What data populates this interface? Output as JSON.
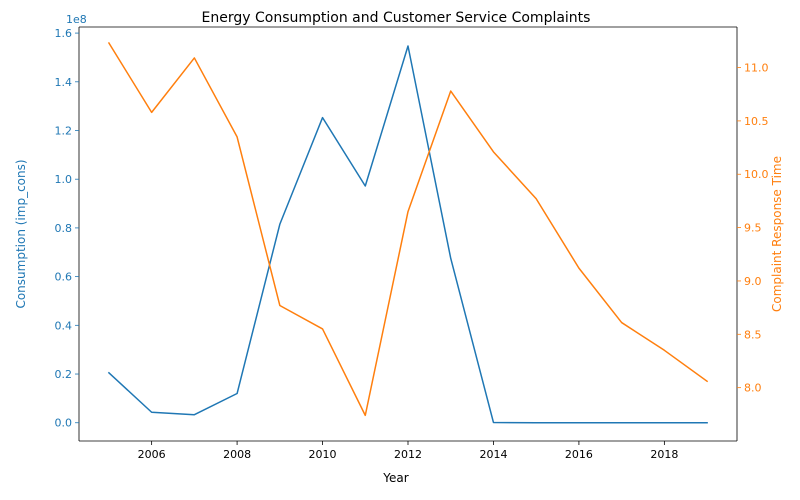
{
  "chart_data": {
    "type": "line",
    "title": "Energy Consumption and Customer Service Complaints",
    "xlabel": "Year",
    "xlim": [
      2004.3,
      2019.7
    ],
    "xticks": [
      2006,
      2008,
      2010,
      2012,
      2014,
      2016,
      2018
    ],
    "left_axis": {
      "label": "Consumption (imp_cons)",
      "color": "#1f77b4",
      "offset_text": "1e8",
      "ylim": [
        -0.075,
        1.625
      ],
      "ticks": [
        0.0,
        0.2,
        0.4,
        0.6,
        0.8,
        1.0,
        1.2,
        1.4,
        1.6
      ],
      "tick_labels": [
        "0.0",
        "0.2",
        "0.4",
        "0.6",
        "0.8",
        "1.0",
        "1.2",
        "1.4",
        "1.6"
      ]
    },
    "right_axis": {
      "label": "Complaint Response Time",
      "color": "#ff7f0e",
      "ylim": [
        7.5,
        11.38
      ],
      "ticks": [
        8.0,
        8.5,
        9.0,
        9.5,
        10.0,
        10.5,
        11.0
      ],
      "tick_labels": [
        "8.0",
        "8.5",
        "9.0",
        "9.5",
        "10.0",
        "10.5",
        "11.0"
      ]
    },
    "x": [
      2005,
      2006,
      2007,
      2008,
      2009,
      2010,
      2011,
      2012,
      2013,
      2014,
      2015,
      2016,
      2017,
      2018,
      2019
    ],
    "series": [
      {
        "axis": "left",
        "color": "#1f77b4",
        "units": "x1e8",
        "values": [
          0.205,
          0.043,
          0.033,
          0.12,
          0.815,
          1.253,
          0.972,
          1.547,
          0.675,
          0.001,
          0.0,
          0.0,
          0.0,
          0.0,
          0.0
        ]
      },
      {
        "axis": "right",
        "color": "#ff7f0e",
        "values": [
          11.23,
          10.58,
          11.09,
          10.35,
          8.77,
          8.55,
          7.74,
          9.65,
          10.78,
          10.21,
          9.77,
          9.12,
          8.61,
          8.35,
          8.06
        ]
      }
    ]
  }
}
